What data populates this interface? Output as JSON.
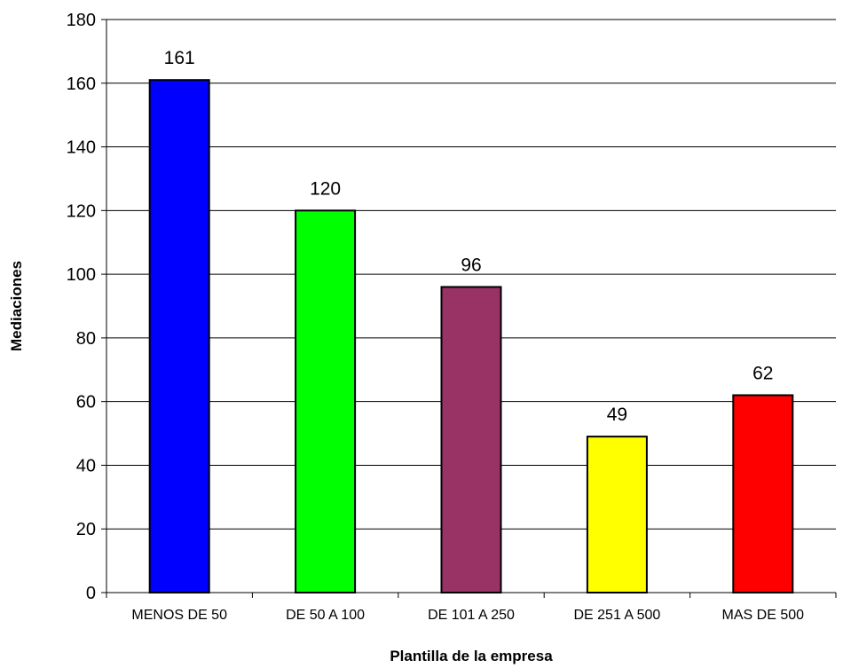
{
  "chart_data": {
    "type": "bar",
    "title": "",
    "xlabel": "Plantilla de la empresa",
    "ylabel": "Mediaciones",
    "categories": [
      "MENOS DE 50",
      "DE 50 A 100",
      "DE 101 A 250",
      "DE 251 A 500",
      "MAS DE 500"
    ],
    "values": [
      161,
      120,
      96,
      49,
      62
    ],
    "colors": [
      "#0000FF",
      "#00FF00",
      "#993366",
      "#FFFF00",
      "#FF0000"
    ],
    "ylim": [
      0,
      180
    ],
    "yticks": [
      0,
      20,
      40,
      60,
      80,
      100,
      120,
      140,
      160,
      180
    ],
    "data_labels": [
      "161",
      "120",
      "96",
      "49",
      "62"
    ],
    "grid": true,
    "legend": "none"
  }
}
